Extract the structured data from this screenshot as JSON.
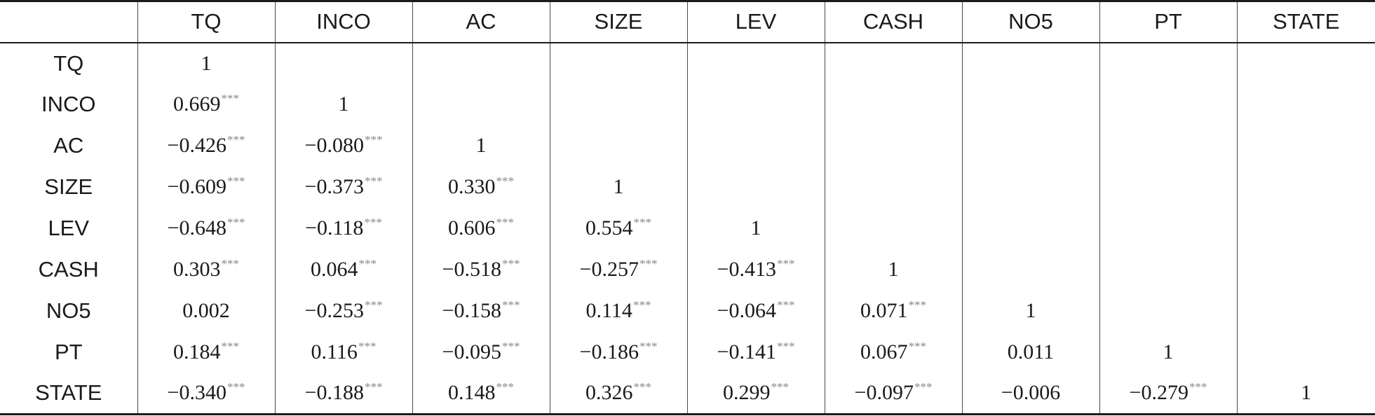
{
  "table": {
    "columns": [
      "",
      "TQ",
      "INCO",
      "AC",
      "SIZE",
      "LEV",
      "CASH",
      "NO5",
      "PT",
      "STATE"
    ],
    "rows": [
      {
        "label": "TQ",
        "cells": [
          {
            "value": "1",
            "sig": ""
          }
        ]
      },
      {
        "label": "INCO",
        "cells": [
          {
            "value": "0.669",
            "sig": "***"
          },
          {
            "value": "1",
            "sig": ""
          }
        ]
      },
      {
        "label": "AC",
        "cells": [
          {
            "value": "−0.426",
            "sig": "***"
          },
          {
            "value": "−0.080",
            "sig": "***"
          },
          {
            "value": "1",
            "sig": ""
          }
        ]
      },
      {
        "label": "SIZE",
        "cells": [
          {
            "value": "−0.609",
            "sig": "***"
          },
          {
            "value": "−0.373",
            "sig": "***"
          },
          {
            "value": "0.330",
            "sig": "***"
          },
          {
            "value": "1",
            "sig": ""
          }
        ]
      },
      {
        "label": "LEV",
        "cells": [
          {
            "value": "−0.648",
            "sig": "***"
          },
          {
            "value": "−0.118",
            "sig": "***"
          },
          {
            "value": "0.606",
            "sig": "***"
          },
          {
            "value": "0.554",
            "sig": "***"
          },
          {
            "value": "1",
            "sig": ""
          }
        ]
      },
      {
        "label": "CASH",
        "cells": [
          {
            "value": "0.303",
            "sig": "***"
          },
          {
            "value": "0.064",
            "sig": "***"
          },
          {
            "value": "−0.518",
            "sig": "***"
          },
          {
            "value": "−0.257",
            "sig": "***"
          },
          {
            "value": "−0.413",
            "sig": "***"
          },
          {
            "value": "1",
            "sig": ""
          }
        ]
      },
      {
        "label": "NO5",
        "cells": [
          {
            "value": "0.002",
            "sig": ""
          },
          {
            "value": "−0.253",
            "sig": "***"
          },
          {
            "value": "−0.158",
            "sig": "***"
          },
          {
            "value": "0.114",
            "sig": "***"
          },
          {
            "value": "−0.064",
            "sig": "***"
          },
          {
            "value": "0.071",
            "sig": "***"
          },
          {
            "value": "1",
            "sig": ""
          }
        ]
      },
      {
        "label": "PT",
        "cells": [
          {
            "value": "0.184",
            "sig": "***"
          },
          {
            "value": "0.116",
            "sig": "***"
          },
          {
            "value": "−0.095",
            "sig": "***"
          },
          {
            "value": "−0.186",
            "sig": "***"
          },
          {
            "value": "−0.141",
            "sig": "***"
          },
          {
            "value": "0.067",
            "sig": "***"
          },
          {
            "value": "0.011",
            "sig": ""
          },
          {
            "value": "1",
            "sig": ""
          }
        ]
      },
      {
        "label": "STATE",
        "cells": [
          {
            "value": "−0.340",
            "sig": "***"
          },
          {
            "value": "−0.188",
            "sig": "***"
          },
          {
            "value": "0.148",
            "sig": "***"
          },
          {
            "value": "0.326",
            "sig": "***"
          },
          {
            "value": "0.299",
            "sig": "***"
          },
          {
            "value": "−0.097",
            "sig": "***"
          },
          {
            "value": "−0.006",
            "sig": ""
          },
          {
            "value": "−0.279",
            "sig": "***"
          },
          {
            "value": "1",
            "sig": ""
          }
        ]
      }
    ]
  }
}
